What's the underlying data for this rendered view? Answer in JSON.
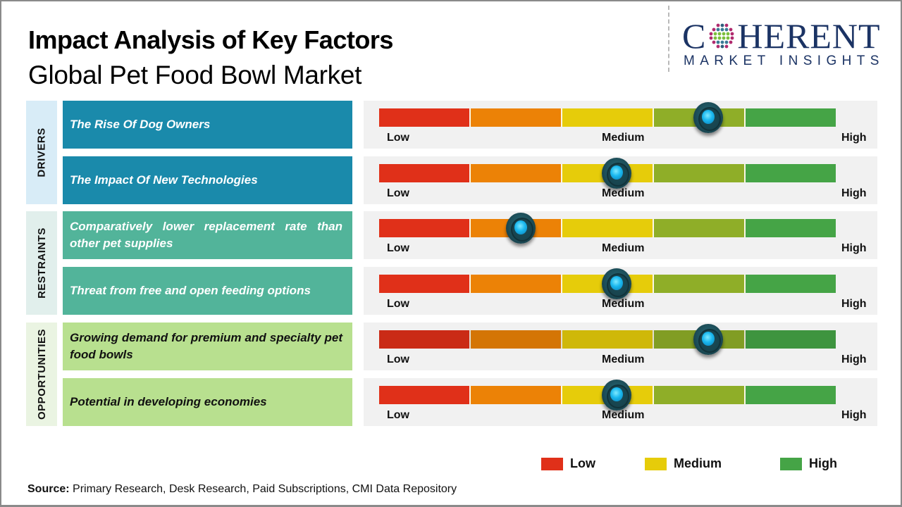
{
  "header": {
    "title": "Impact Analysis of Key Factors",
    "subtitle": "Global Pet Food Bowl Market"
  },
  "logo": {
    "letter_c": "C",
    "rest": "HERENT",
    "tagline": "MARKET INSIGHTS"
  },
  "colors": {
    "drivers_label_bg": "#d8ecf7",
    "drivers_bg": "#1a8aab",
    "restraints_label_bg": "#e1efec",
    "restraints_bg": "#52b49a",
    "opportunities_label_bg": "#eaf4e2",
    "opportunities_bg": "#b8e08f",
    "segments": [
      "#e03019",
      "#ec8206",
      "#e6cc0a",
      "#8fae28",
      "#45a446"
    ]
  },
  "gauge_labels": {
    "low": "Low",
    "medium": "Medium",
    "high": "High"
  },
  "legend": [
    {
      "label": "Low",
      "color": "#e03019"
    },
    {
      "label": "Medium",
      "color": "#e6cc0a"
    },
    {
      "label": "High",
      "color": "#45a446"
    }
  ],
  "source": {
    "prefix": "Source:",
    "text": " Primary Research, Desk Research, Paid Subscriptions, CMI Data Repository"
  },
  "chart_data": {
    "type": "gauge",
    "title": "Impact Analysis of Key Factors — Global Pet Food Bowl Market",
    "scale": {
      "min": 0,
      "max": 1,
      "labels": [
        "Low",
        "Medium",
        "High"
      ],
      "segments": 5
    },
    "categories": [
      {
        "name": "DRIVERS",
        "factors": [
          {
            "label": "The Rise Of Dog Owners",
            "impact": 0.72
          },
          {
            "label": "The Impact Of New Technologies",
            "impact": 0.52
          }
        ]
      },
      {
        "name": "RESTRAINTS",
        "factors": [
          {
            "label": "Comparatively lower replacement rate than other pet supplies",
            "impact": 0.31
          },
          {
            "label": "Threat from free and open feeding options",
            "impact": 0.52
          }
        ]
      },
      {
        "name": "OPPORTUNITIES",
        "factors": [
          {
            "label": "Growing demand for premium and specialty pet food bowls",
            "impact": 0.72
          },
          {
            "label": "Potential in developing economies",
            "impact": 0.52
          }
        ]
      }
    ]
  }
}
